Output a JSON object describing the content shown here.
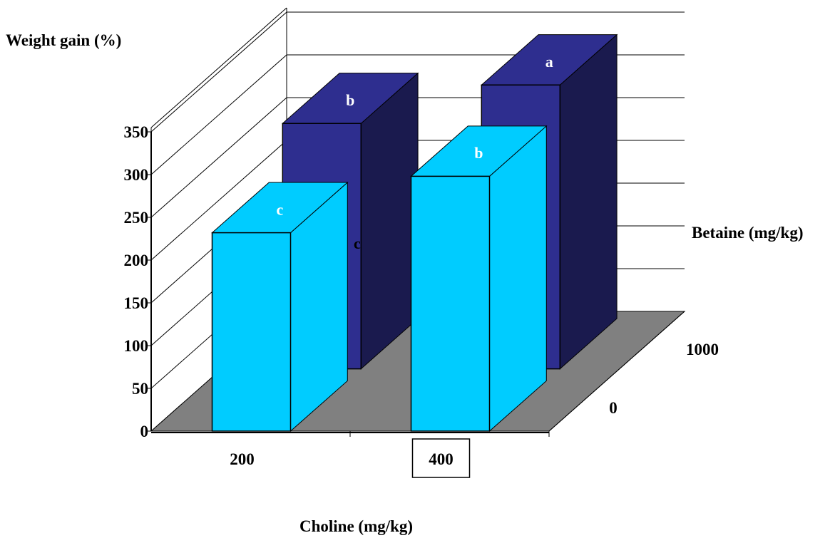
{
  "chart_data": {
    "type": "bar",
    "three_d": true,
    "title": "",
    "ylabel": "Weight gain (%)",
    "xlabel": "Choline (mg/kg)",
    "zlabel": "Betaine (mg/kg)",
    "categories": [
      "200",
      "400"
    ],
    "depth_categories": [
      "0",
      "1000"
    ],
    "ylim": [
      0,
      350
    ],
    "yticks": [
      "0",
      "50",
      "100",
      "150",
      "200",
      "250",
      "300",
      "350"
    ],
    "grid": true,
    "highlighted_category": "400",
    "series": [
      {
        "name": "0",
        "color": "#00CCFF",
        "values": [
          232,
          298
        ],
        "letters": [
          "c",
          "b"
        ]
      },
      {
        "name": "1000",
        "color": "#2E2E8F",
        "values": [
          287,
          332
        ],
        "letters": [
          "b",
          "a"
        ]
      }
    ],
    "extra_annotation": "c"
  },
  "colors": {
    "floor": "#808080",
    "front_series": "#00CCFF",
    "back_series": "#2E2E8F",
    "back_series_side": "#1A1A4E"
  }
}
